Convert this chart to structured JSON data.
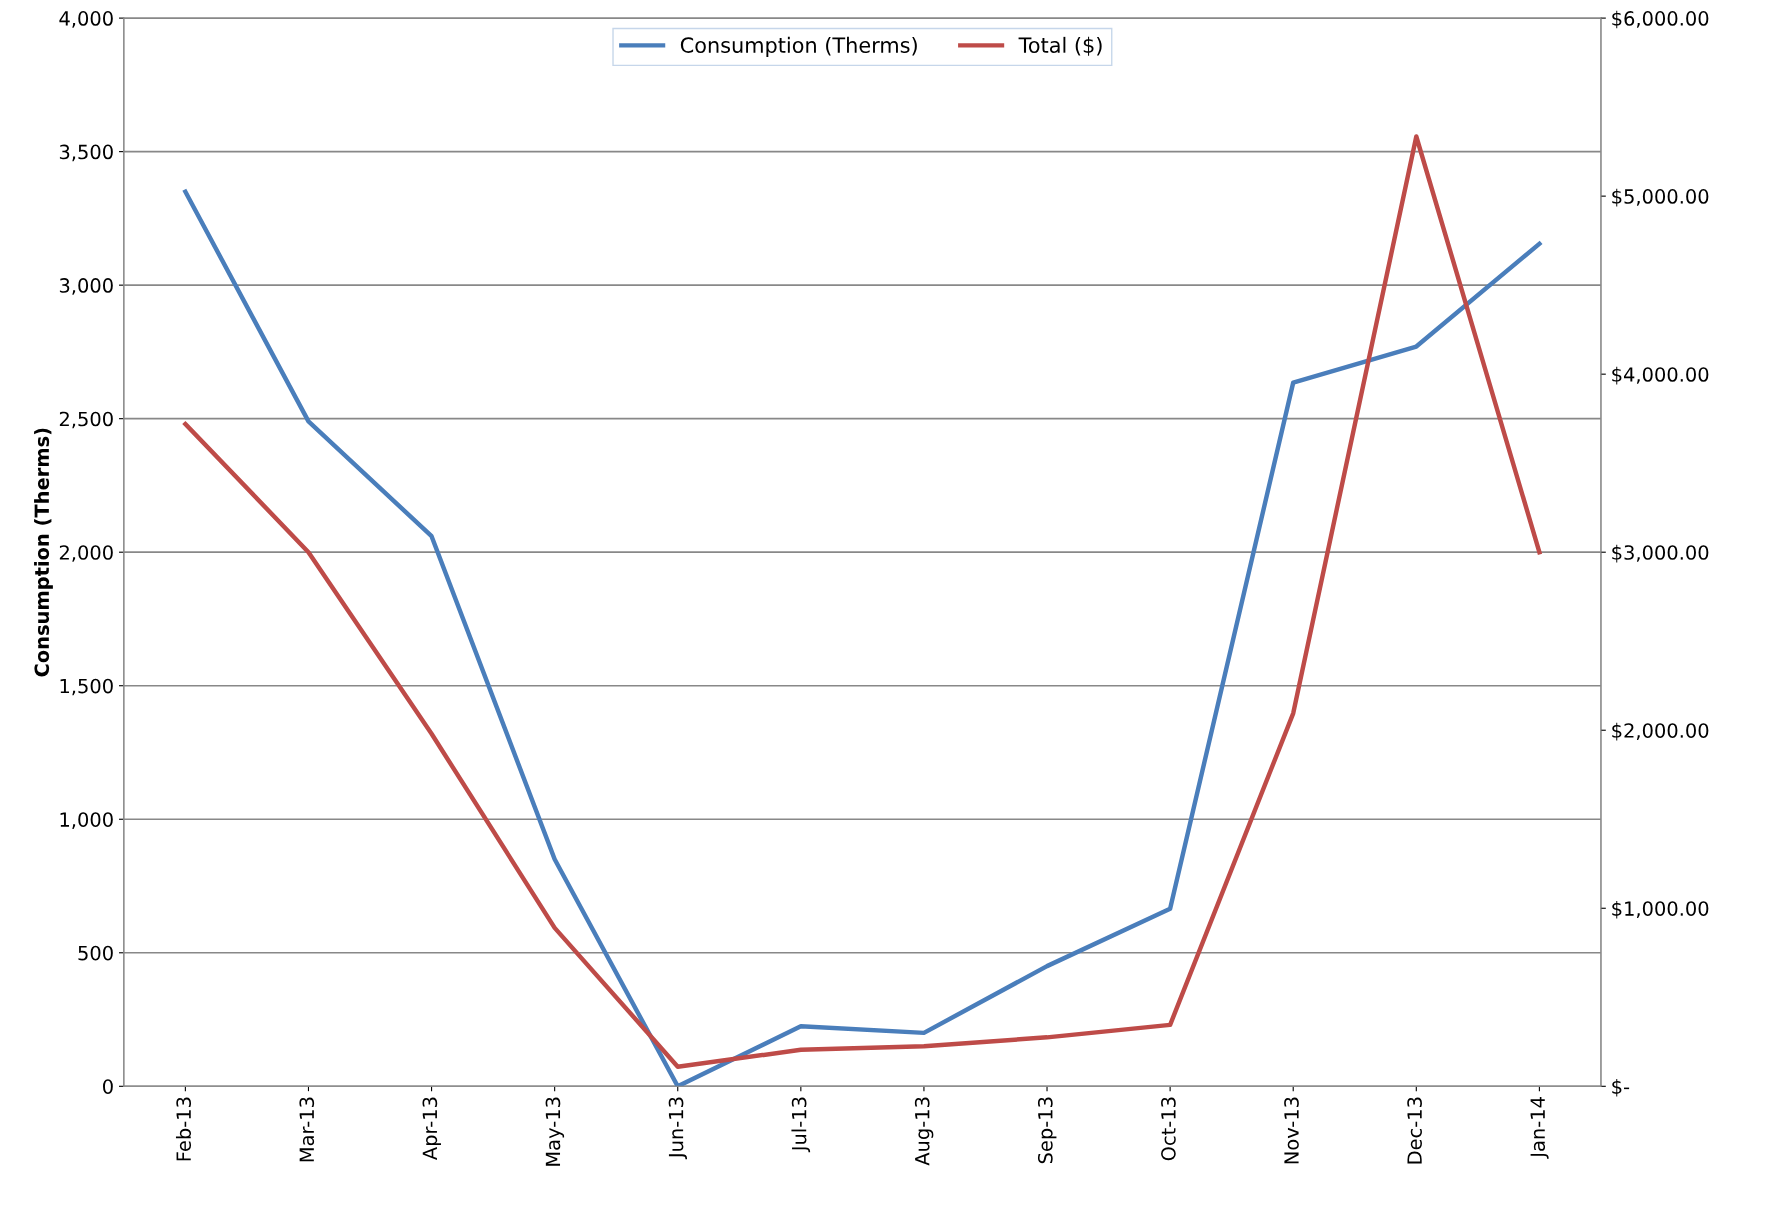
{
  "chart_data": {
    "type": "line",
    "ylabel": "Consumption (Therms)",
    "categories": [
      "Feb-13",
      "Mar-13",
      "Apr-13",
      "May-13",
      "Jun-13",
      "Jul-13",
      "Aug-13",
      "Sep-13",
      "Oct-13",
      "Nov-13",
      "Dec-13",
      "Jan-14"
    ],
    "series": [
      {
        "name": "Consumption (Therms)",
        "color": "#4a7ebb",
        "values": [
          3350,
          2490,
          2060,
          850,
          0,
          225,
          200,
          450,
          665,
          2635,
          2770,
          3155
        ]
      },
      {
        "name": "Total ($)",
        "color": "#be4b48",
        "axis": "y2",
        "values": [
          3720,
          3000,
          1980,
          890,
          110,
          205,
          225,
          275,
          345,
          2095,
          5335,
          3000
        ]
      }
    ],
    "ylim": [
      0,
      4000
    ],
    "yticks": [
      0,
      {
        "value": 500,
        "label": "500"
      },
      {
        "value": 1000,
        "label": "1,000"
      },
      {
        "value": 1500,
        "label": "1,500"
      },
      {
        "value": 2000,
        "label": "2,000"
      },
      {
        "value": 2500,
        "label": "2,500"
      },
      {
        "value": 3000,
        "label": "3,000"
      },
      {
        "value": 3500,
        "label": "3,500"
      },
      {
        "value": 4000,
        "label": "4,000"
      }
    ],
    "y2lim": [
      0,
      6000
    ],
    "y2ticks": [
      {
        "value": 0,
        "label": "$-"
      },
      {
        "value": 1000,
        "label": "$1,000.00"
      },
      {
        "value": 2000,
        "label": "$2,000.00"
      },
      {
        "value": 3000,
        "label": "$3,000.00"
      },
      {
        "value": 4000,
        "label": "$4,000.00"
      },
      {
        "value": 5000,
        "label": "$5,000.00"
      },
      {
        "value": 6000,
        "label": "$6,000.00"
      }
    ],
    "grid": "y",
    "legend": "top",
    "marker": "none",
    "line_style": "solid"
  }
}
